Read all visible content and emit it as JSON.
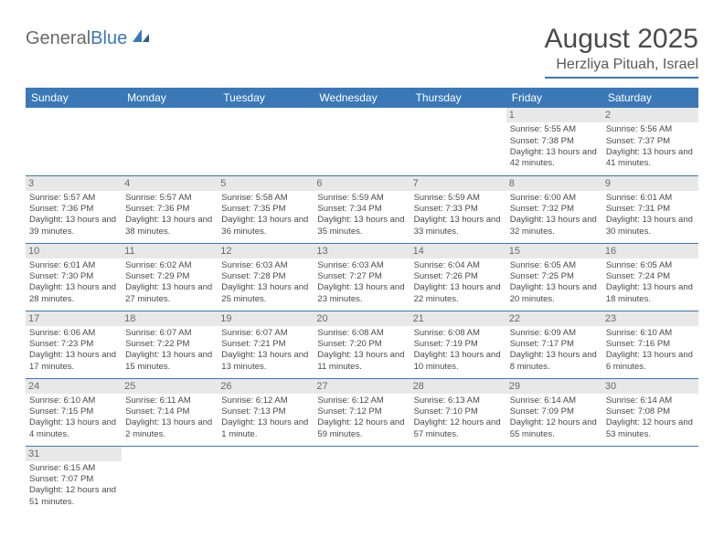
{
  "logo": {
    "text_general": "General",
    "text_blue": "Blue"
  },
  "title": "August 2025",
  "location": "Herzliya Pituah, Israel",
  "colors": {
    "header_bg": "#3a78b8",
    "header_text": "#ffffff",
    "daynum_bg": "#e8e8e8",
    "border": "#3a78b8",
    "body_text": "#4a4a4a"
  },
  "weekdays": [
    "Sunday",
    "Monday",
    "Tuesday",
    "Wednesday",
    "Thursday",
    "Friday",
    "Saturday"
  ],
  "weeks": [
    [
      null,
      null,
      null,
      null,
      null,
      {
        "n": "1",
        "sr": "5:55 AM",
        "ss": "7:38 PM",
        "dl": "13 hours and 42 minutes."
      },
      {
        "n": "2",
        "sr": "5:56 AM",
        "ss": "7:37 PM",
        "dl": "13 hours and 41 minutes."
      }
    ],
    [
      {
        "n": "3",
        "sr": "5:57 AM",
        "ss": "7:36 PM",
        "dl": "13 hours and 39 minutes."
      },
      {
        "n": "4",
        "sr": "5:57 AM",
        "ss": "7:36 PM",
        "dl": "13 hours and 38 minutes."
      },
      {
        "n": "5",
        "sr": "5:58 AM",
        "ss": "7:35 PM",
        "dl": "13 hours and 36 minutes."
      },
      {
        "n": "6",
        "sr": "5:59 AM",
        "ss": "7:34 PM",
        "dl": "13 hours and 35 minutes."
      },
      {
        "n": "7",
        "sr": "5:59 AM",
        "ss": "7:33 PM",
        "dl": "13 hours and 33 minutes."
      },
      {
        "n": "8",
        "sr": "6:00 AM",
        "ss": "7:32 PM",
        "dl": "13 hours and 32 minutes."
      },
      {
        "n": "9",
        "sr": "6:01 AM",
        "ss": "7:31 PM",
        "dl": "13 hours and 30 minutes."
      }
    ],
    [
      {
        "n": "10",
        "sr": "6:01 AM",
        "ss": "7:30 PM",
        "dl": "13 hours and 28 minutes."
      },
      {
        "n": "11",
        "sr": "6:02 AM",
        "ss": "7:29 PM",
        "dl": "13 hours and 27 minutes."
      },
      {
        "n": "12",
        "sr": "6:03 AM",
        "ss": "7:28 PM",
        "dl": "13 hours and 25 minutes."
      },
      {
        "n": "13",
        "sr": "6:03 AM",
        "ss": "7:27 PM",
        "dl": "13 hours and 23 minutes."
      },
      {
        "n": "14",
        "sr": "6:04 AM",
        "ss": "7:26 PM",
        "dl": "13 hours and 22 minutes."
      },
      {
        "n": "15",
        "sr": "6:05 AM",
        "ss": "7:25 PM",
        "dl": "13 hours and 20 minutes."
      },
      {
        "n": "16",
        "sr": "6:05 AM",
        "ss": "7:24 PM",
        "dl": "13 hours and 18 minutes."
      }
    ],
    [
      {
        "n": "17",
        "sr": "6:06 AM",
        "ss": "7:23 PM",
        "dl": "13 hours and 17 minutes."
      },
      {
        "n": "18",
        "sr": "6:07 AM",
        "ss": "7:22 PM",
        "dl": "13 hours and 15 minutes."
      },
      {
        "n": "19",
        "sr": "6:07 AM",
        "ss": "7:21 PM",
        "dl": "13 hours and 13 minutes."
      },
      {
        "n": "20",
        "sr": "6:08 AM",
        "ss": "7:20 PM",
        "dl": "13 hours and 11 minutes."
      },
      {
        "n": "21",
        "sr": "6:08 AM",
        "ss": "7:19 PM",
        "dl": "13 hours and 10 minutes."
      },
      {
        "n": "22",
        "sr": "6:09 AM",
        "ss": "7:17 PM",
        "dl": "13 hours and 8 minutes."
      },
      {
        "n": "23",
        "sr": "6:10 AM",
        "ss": "7:16 PM",
        "dl": "13 hours and 6 minutes."
      }
    ],
    [
      {
        "n": "24",
        "sr": "6:10 AM",
        "ss": "7:15 PM",
        "dl": "13 hours and 4 minutes."
      },
      {
        "n": "25",
        "sr": "6:11 AM",
        "ss": "7:14 PM",
        "dl": "13 hours and 2 minutes."
      },
      {
        "n": "26",
        "sr": "6:12 AM",
        "ss": "7:13 PM",
        "dl": "13 hours and 1 minute."
      },
      {
        "n": "27",
        "sr": "6:12 AM",
        "ss": "7:12 PM",
        "dl": "12 hours and 59 minutes."
      },
      {
        "n": "28",
        "sr": "6:13 AM",
        "ss": "7:10 PM",
        "dl": "12 hours and 57 minutes."
      },
      {
        "n": "29",
        "sr": "6:14 AM",
        "ss": "7:09 PM",
        "dl": "12 hours and 55 minutes."
      },
      {
        "n": "30",
        "sr": "6:14 AM",
        "ss": "7:08 PM",
        "dl": "12 hours and 53 minutes."
      }
    ],
    [
      {
        "n": "31",
        "sr": "6:15 AM",
        "ss": "7:07 PM",
        "dl": "12 hours and 51 minutes."
      },
      null,
      null,
      null,
      null,
      null,
      null
    ]
  ],
  "labels": {
    "sunrise": "Sunrise:",
    "sunset": "Sunset:",
    "daylight": "Daylight:"
  }
}
